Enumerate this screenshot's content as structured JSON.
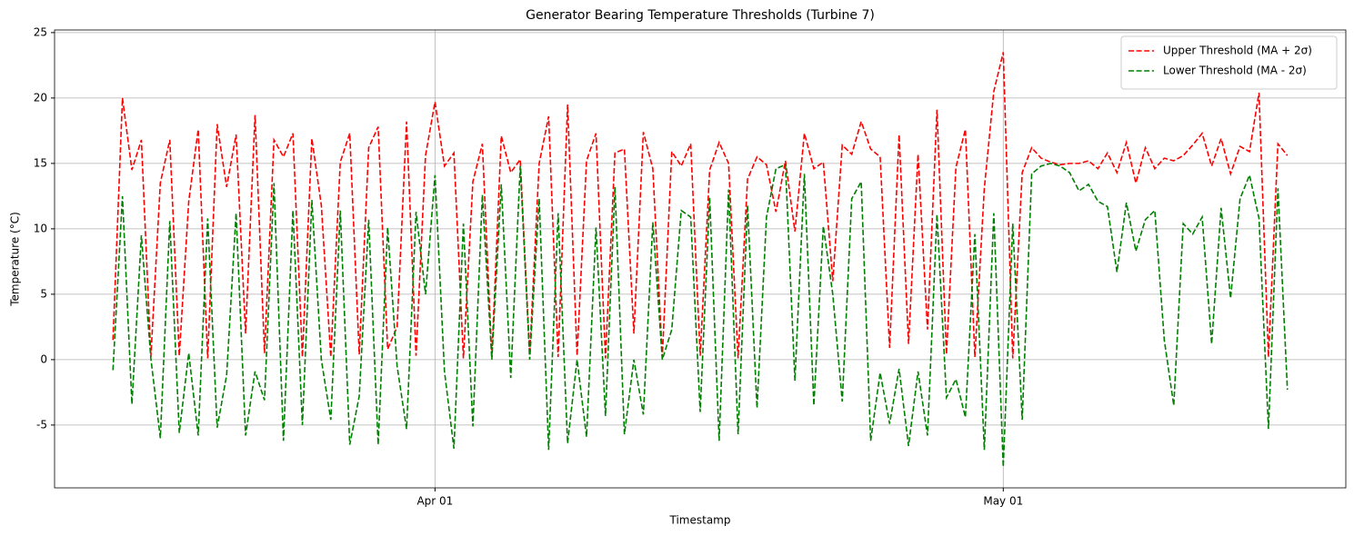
{
  "chart_data": {
    "type": "line",
    "title": "Generator Bearing Temperature Thresholds (Turbine 7)",
    "x_label": "Timestamp",
    "y_label": "Temperature (°C)",
    "x": [
      "03-15T00",
      "03-15T12",
      "03-16T00",
      "03-16T12",
      "03-17T00",
      "03-17T12",
      "03-18T00",
      "03-18T12",
      "03-19T00",
      "03-19T12",
      "03-20T00",
      "03-20T12",
      "03-21T00",
      "03-21T12",
      "03-22T00",
      "03-22T12",
      "03-23T00",
      "03-23T12",
      "03-24T00",
      "03-24T12",
      "03-25T00",
      "03-25T12",
      "03-26T00",
      "03-26T12",
      "03-27T00",
      "03-27T12",
      "03-28T00",
      "03-28T12",
      "03-29T00",
      "03-29T12",
      "03-30T00",
      "03-30T12",
      "03-31T00",
      "03-31T12",
      "04-01T00",
      "04-01T12",
      "04-02T00",
      "04-02T12",
      "04-03T00",
      "04-03T12",
      "04-04T00",
      "04-04T12",
      "04-05T00",
      "04-05T12",
      "04-06T00",
      "04-06T12",
      "04-07T00",
      "04-07T12",
      "04-08T00",
      "04-08T12",
      "04-09T00",
      "04-09T12",
      "04-10T00",
      "04-10T12",
      "04-11T00",
      "04-11T12",
      "04-12T00",
      "04-12T12",
      "04-13T00",
      "04-13T12",
      "04-14T00",
      "04-14T12",
      "04-15T00",
      "04-15T12",
      "04-16T00",
      "04-16T12",
      "04-17T00",
      "04-17T12",
      "04-18T00",
      "04-18T12",
      "04-19T00",
      "04-19T12",
      "04-20T00",
      "04-20T12",
      "04-21T00",
      "04-21T12",
      "04-22T00",
      "04-22T12",
      "04-23T00",
      "04-23T12",
      "04-24T00",
      "04-24T12",
      "04-25T00",
      "04-25T12",
      "04-26T00",
      "04-26T12",
      "04-27T00",
      "04-27T12",
      "04-28T00",
      "04-28T12",
      "04-29T00",
      "04-29T12",
      "04-30T00",
      "04-30T12",
      "05-01T00",
      "05-01T12",
      "05-02T00",
      "05-02T12",
      "05-03T00",
      "05-03T12",
      "05-04T00",
      "05-04T12",
      "05-05T00",
      "05-05T12",
      "05-06T00",
      "05-06T12",
      "05-07T00",
      "05-07T12",
      "05-08T00",
      "05-08T12",
      "05-09T00",
      "05-09T12",
      "05-10T00",
      "05-10T12",
      "05-11T00",
      "05-11T12",
      "05-12T00",
      "05-12T12",
      "05-13T00",
      "05-13T12",
      "05-14T00",
      "05-14T12",
      "05-15T00",
      "05-15T12",
      "05-16T00"
    ],
    "series": [
      {
        "name": "Upper Threshold (MA + 2σ)",
        "color": "#ff0000",
        "values": [
          1.5,
          20.0,
          14.5,
          16.8,
          0.2,
          13.5,
          16.8,
          0.3,
          12.1,
          17.6,
          0.1,
          18.0,
          13.2,
          17.2,
          2.0,
          18.7,
          0.5,
          16.8,
          15.5,
          17.3,
          0.2,
          16.9,
          11.8,
          0.2,
          15.1,
          17.3,
          0.4,
          16.2,
          17.8,
          0.8,
          2.5,
          18.2,
          0.3,
          15.6,
          19.7,
          14.8,
          15.8,
          0.1,
          13.6,
          16.5,
          0.2,
          17.1,
          14.3,
          15.3,
          0.4,
          15.0,
          18.6,
          0.2,
          19.5,
          0.3,
          15.2,
          17.3,
          0.1,
          15.8,
          16.1,
          2.0,
          17.4,
          14.6,
          0.2,
          15.9,
          14.8,
          16.5,
          0.3,
          14.5,
          16.6,
          15.0,
          0.1,
          13.8,
          15.5,
          14.9,
          11.3,
          15.2,
          9.8,
          17.3,
          14.6,
          15.1,
          6.0,
          16.4,
          15.7,
          18.2,
          16.1,
          15.5,
          0.9,
          17.2,
          1.2,
          15.7,
          2.3,
          19.1,
          0.4,
          14.7,
          17.6,
          0.2,
          13.1,
          20.5,
          23.5,
          0.1,
          14.3,
          16.2,
          15.4,
          15.1,
          14.9,
          15.0,
          15.0,
          15.2,
          14.6,
          15.8,
          14.3,
          16.6,
          13.5,
          16.2,
          14.6,
          15.4,
          15.2,
          15.6,
          16.4,
          17.3,
          14.8,
          16.9,
          14.2,
          16.3,
          15.9,
          20.4,
          0.2,
          16.5,
          15.6
        ]
      },
      {
        "name": "Lower Threshold (MA - 2σ)",
        "color": "#008000",
        "values": [
          -0.8,
          12.5,
          -3.4,
          9.5,
          0.1,
          -6.0,
          10.6,
          -5.6,
          0.5,
          -5.8,
          10.8,
          -5.2,
          -1.2,
          11.2,
          -5.8,
          -0.9,
          -3.1,
          13.5,
          -6.2,
          11.4,
          -5.0,
          12.2,
          0.0,
          -4.6,
          11.4,
          -6.5,
          -2.8,
          10.7,
          -6.5,
          10.1,
          -0.5,
          -5.3,
          11.3,
          5.0,
          14.1,
          -0.9,
          -6.8,
          10.4,
          -5.1,
          12.6,
          0.0,
          13.4,
          -1.4,
          14.8,
          0.0,
          12.3,
          -6.9,
          11.2,
          -6.4,
          0.0,
          -5.9,
          10.1,
          -4.3,
          13.2,
          -5.7,
          0.0,
          -4.2,
          10.5,
          0.0,
          2.3,
          11.4,
          10.9,
          -4.0,
          12.4,
          -6.2,
          13.0,
          -5.7,
          11.8,
          -3.7,
          10.9,
          14.6,
          14.9,
          -1.6,
          14.2,
          -3.5,
          10.2,
          5.0,
          -3.2,
          12.3,
          13.6,
          -6.2,
          -1.0,
          -4.9,
          -0.7,
          -6.6,
          -0.9,
          -5.8,
          11.1,
          -2.9,
          -1.5,
          -4.4,
          9.6,
          -6.9,
          11.2,
          -8.2,
          10.4,
          -4.6,
          14.2,
          14.8,
          15.0,
          14.8,
          14.3,
          12.9,
          13.4,
          12.1,
          11.7,
          6.7,
          12.0,
          8.3,
          10.7,
          11.4,
          1.5,
          -3.5,
          10.4,
          9.6,
          10.9,
          1.2,
          11.6,
          4.7,
          12.3,
          14.1,
          10.8,
          -5.3,
          13.1,
          -2.3
        ]
      }
    ],
    "xlim": [
      "03-11T22",
      "05-19T02"
    ],
    "xticks": [
      {
        "value": "04-01T00",
        "label": "Apr 01"
      },
      {
        "value": "05-01T00",
        "label": "May 01"
      }
    ],
    "ylim": [
      -9.8,
      25.2
    ],
    "yticks": [
      -5,
      0,
      5,
      10,
      15,
      20,
      25
    ],
    "grid": true,
    "legend": "upper right",
    "line_style": "dashed"
  }
}
